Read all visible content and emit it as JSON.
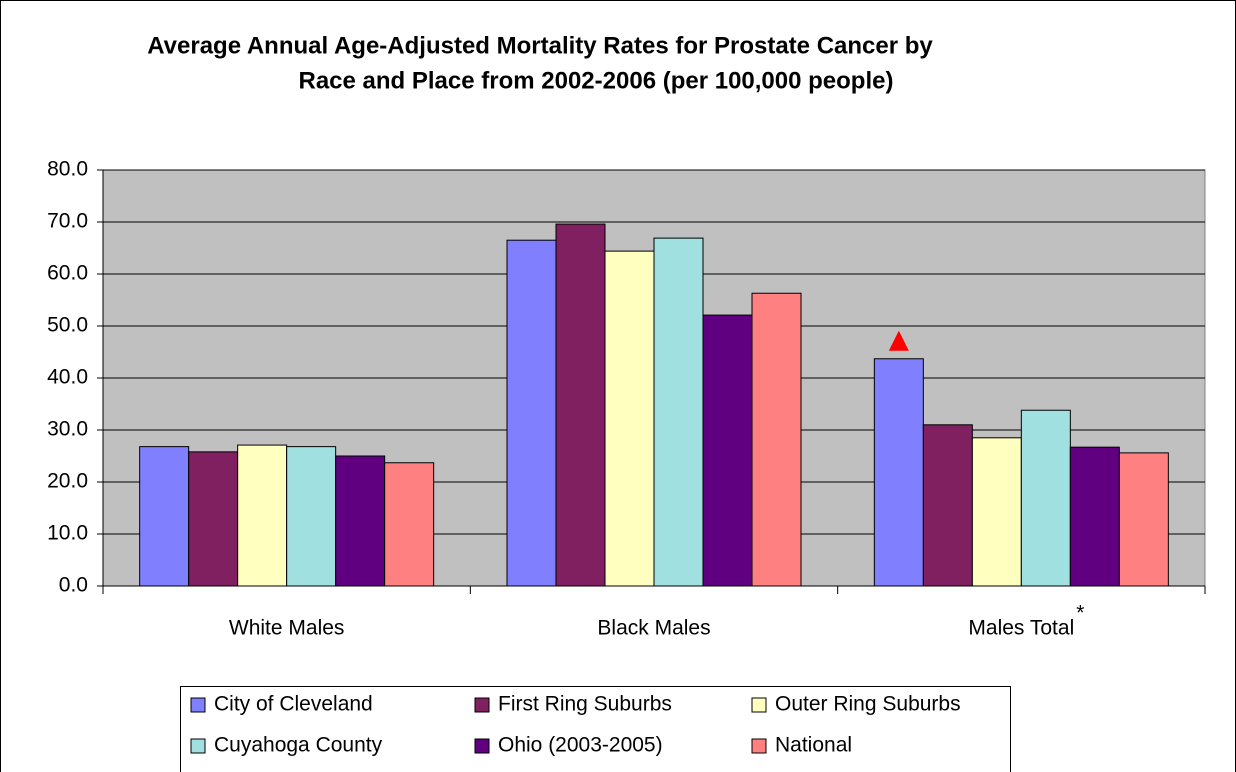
{
  "chart_data": {
    "type": "bar",
    "title": [
      "Average Annual Age-Adjusted Mortality Rates for Prostate Cancer by",
      "Race and Place from 2002-2006 (per 100,000 people)"
    ],
    "categories": [
      "White Males",
      "Black Males",
      "Males Total"
    ],
    "annotation": "*",
    "series": [
      {
        "name": "City of Cleveland",
        "color": "#8080ff",
        "values": [
          26.8,
          66.5,
          43.7
        ]
      },
      {
        "name": "First Ring Suburbs",
        "color": "#802060",
        "values": [
          25.8,
          69.6,
          31.0
        ]
      },
      {
        "name": "Outer Ring Suburbs",
        "color": "#ffffc0",
        "values": [
          27.1,
          64.4,
          28.5
        ]
      },
      {
        "name": "Cuyahoga County",
        "color": "#a0e0e0",
        "values": [
          26.8,
          66.9,
          33.8
        ]
      },
      {
        "name": "Ohio (2003-2005)",
        "color": "#600080",
        "values": [
          25.0,
          52.1,
          26.7
        ]
      },
      {
        "name": "National",
        "color": "#ff8080",
        "values": [
          23.7,
          56.3,
          25.6
        ]
      }
    ],
    "ylim": [
      0,
      80
    ],
    "yticks": [
      {
        "value": 0,
        "label": "0.0"
      },
      {
        "value": 10,
        "label": "10.0"
      },
      {
        "value": 20,
        "label": "20.0"
      },
      {
        "value": 30,
        "label": "30.0"
      },
      {
        "value": 40,
        "label": "40.0"
      },
      {
        "value": 50,
        "label": "50.0"
      },
      {
        "value": 60,
        "label": "60.0"
      },
      {
        "value": 70,
        "label": "70.0"
      },
      {
        "value": 80,
        "label": "80.0"
      }
    ],
    "grid": true,
    "legend": "bottom",
    "plot_background": "#c0c0c0"
  }
}
